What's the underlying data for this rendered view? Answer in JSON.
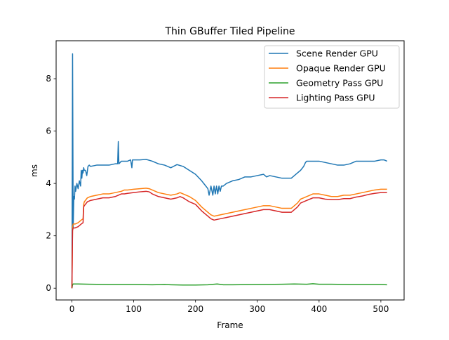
{
  "chart_data": {
    "type": "line",
    "title": "Thin GBuffer Tiled Pipeline",
    "xlabel": "Frame",
    "ylabel": "ms",
    "xlim": [
      -25.6,
      537.6
    ],
    "ylim": [
      -0.45,
      9.45
    ],
    "xticks": [
      0,
      100,
      200,
      300,
      400,
      500
    ],
    "yticks": [
      0,
      2,
      4,
      6,
      8
    ],
    "grid": false,
    "legend_position": "top-right",
    "series": [
      {
        "name": "Scene Render GPU",
        "color": "#1f77b4",
        "x": [
          0,
          1,
          2,
          3,
          4,
          5,
          6,
          8,
          10,
          12,
          14,
          15,
          16,
          17,
          18,
          19,
          20,
          22,
          24,
          26,
          28,
          30,
          40,
          50,
          60,
          70,
          74,
          75,
          76,
          78,
          80,
          90,
          95,
          97,
          98,
          100,
          110,
          120,
          130,
          140,
          150,
          160,
          170,
          180,
          190,
          200,
          210,
          215,
          220,
          222,
          225,
          228,
          230,
          232,
          234,
          236,
          238,
          240,
          242,
          245,
          250,
          260,
          270,
          280,
          290,
          300,
          310,
          315,
          320,
          330,
          340,
          350,
          355,
          360,
          365,
          370,
          375,
          378,
          380,
          390,
          400,
          410,
          420,
          430,
          440,
          450,
          460,
          470,
          480,
          490,
          500,
          505,
          510
        ],
        "y": [
          0.0,
          8.95,
          2.3,
          3.5,
          3.4,
          3.9,
          3.7,
          4.0,
          3.8,
          4.1,
          3.9,
          4.5,
          4.2,
          4.5,
          4.4,
          4.6,
          4.5,
          4.5,
          4.3,
          4.65,
          4.7,
          4.65,
          4.7,
          4.7,
          4.7,
          4.75,
          4.75,
          5.6,
          4.75,
          4.8,
          4.85,
          4.85,
          4.9,
          4.6,
          4.9,
          4.9,
          4.9,
          4.92,
          4.85,
          4.75,
          4.7,
          4.6,
          4.72,
          4.65,
          4.5,
          4.35,
          4.1,
          3.95,
          3.8,
          3.55,
          3.9,
          3.55,
          3.9,
          3.6,
          3.9,
          3.6,
          3.9,
          3.7,
          3.9,
          3.9,
          4.0,
          4.1,
          4.15,
          4.25,
          4.25,
          4.3,
          4.35,
          4.25,
          4.3,
          4.25,
          4.2,
          4.2,
          4.2,
          4.3,
          4.4,
          4.5,
          4.65,
          4.8,
          4.85,
          4.85,
          4.85,
          4.8,
          4.75,
          4.7,
          4.7,
          4.75,
          4.85,
          4.85,
          4.85,
          4.85,
          4.9,
          4.9,
          4.85
        ]
      },
      {
        "name": "Opaque Render GPU",
        "color": "#ff7f0e",
        "x": [
          0,
          1,
          2,
          5,
          10,
          15,
          18,
          19,
          20,
          25,
          30,
          40,
          50,
          60,
          70,
          80,
          85,
          90,
          100,
          110,
          120,
          125,
          130,
          140,
          150,
          160,
          170,
          175,
          180,
          190,
          200,
          210,
          220,
          225,
          230,
          240,
          250,
          260,
          270,
          280,
          290,
          300,
          310,
          320,
          330,
          340,
          350,
          355,
          360,
          365,
          370,
          375,
          380,
          385,
          390,
          400,
          410,
          420,
          430,
          440,
          450,
          460,
          470,
          480,
          490,
          500,
          510
        ],
        "y": [
          0.0,
          2.35,
          2.45,
          2.45,
          2.5,
          2.6,
          2.65,
          3.2,
          3.3,
          3.45,
          3.5,
          3.55,
          3.6,
          3.6,
          3.65,
          3.7,
          3.75,
          3.75,
          3.78,
          3.8,
          3.82,
          3.8,
          3.75,
          3.65,
          3.6,
          3.55,
          3.6,
          3.65,
          3.6,
          3.5,
          3.35,
          3.1,
          2.9,
          2.8,
          2.75,
          2.8,
          2.85,
          2.9,
          2.95,
          3.0,
          3.05,
          3.1,
          3.15,
          3.15,
          3.1,
          3.05,
          3.05,
          3.05,
          3.15,
          3.25,
          3.4,
          3.45,
          3.5,
          3.55,
          3.6,
          3.6,
          3.55,
          3.5,
          3.5,
          3.55,
          3.55,
          3.6,
          3.65,
          3.7,
          3.75,
          3.78,
          3.78
        ]
      },
      {
        "name": "Geometry Pass GPU",
        "color": "#2ca02c",
        "x": [
          0,
          1,
          2,
          10,
          30,
          60,
          100,
          130,
          150,
          160,
          180,
          200,
          220,
          235,
          245,
          260,
          300,
          340,
          360,
          380,
          390,
          400,
          420,
          450,
          480,
          500,
          510
        ],
        "y": [
          0.0,
          0.13,
          0.16,
          0.16,
          0.15,
          0.14,
          0.14,
          0.13,
          0.14,
          0.13,
          0.12,
          0.12,
          0.13,
          0.16,
          0.13,
          0.13,
          0.14,
          0.15,
          0.16,
          0.15,
          0.17,
          0.15,
          0.15,
          0.14,
          0.14,
          0.14,
          0.13
        ]
      },
      {
        "name": "Lighting Pass GPU",
        "color": "#d62728",
        "x": [
          0,
          1,
          2,
          5,
          10,
          15,
          18,
          19,
          20,
          25,
          30,
          40,
          50,
          60,
          70,
          80,
          85,
          90,
          100,
          110,
          120,
          125,
          130,
          140,
          150,
          160,
          170,
          175,
          180,
          190,
          200,
          210,
          220,
          225,
          230,
          240,
          250,
          260,
          270,
          280,
          290,
          300,
          310,
          320,
          330,
          340,
          350,
          355,
          360,
          365,
          370,
          375,
          380,
          385,
          390,
          400,
          410,
          420,
          430,
          440,
          450,
          460,
          470,
          480,
          490,
          500,
          510
        ],
        "y": [
          0.0,
          2.2,
          2.3,
          2.3,
          2.35,
          2.45,
          2.5,
          3.1,
          3.15,
          3.3,
          3.35,
          3.4,
          3.45,
          3.45,
          3.5,
          3.6,
          3.6,
          3.62,
          3.65,
          3.68,
          3.7,
          3.68,
          3.6,
          3.5,
          3.45,
          3.4,
          3.45,
          3.5,
          3.45,
          3.3,
          3.2,
          2.95,
          2.75,
          2.65,
          2.6,
          2.65,
          2.7,
          2.75,
          2.8,
          2.85,
          2.9,
          2.95,
          3.0,
          3.0,
          2.95,
          2.9,
          2.9,
          2.9,
          3.0,
          3.1,
          3.25,
          3.3,
          3.35,
          3.4,
          3.45,
          3.45,
          3.4,
          3.38,
          3.38,
          3.42,
          3.42,
          3.48,
          3.52,
          3.58,
          3.62,
          3.65,
          3.65
        ]
      }
    ]
  }
}
